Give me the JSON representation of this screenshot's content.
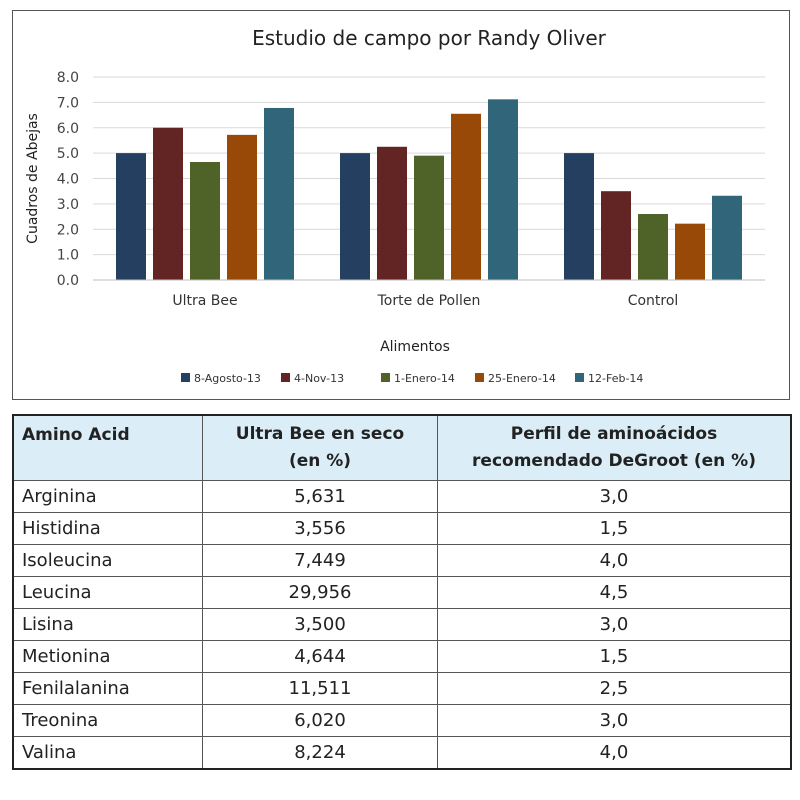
{
  "chart_data": {
    "type": "bar",
    "title": "Estudio de campo por Randy Oliver",
    "xlabel": "Alimentos",
    "ylabel": "Cuadros de Abejas",
    "ylim": [
      0,
      8
    ],
    "yticks": [
      "0.0",
      "1.0",
      "2.0",
      "3.0",
      "4.0",
      "5.0",
      "6.0",
      "7.0",
      "8.0"
    ],
    "grid": true,
    "legend_position": "bottom",
    "categories": [
      "Ultra Bee",
      "Torte de Pollen",
      "Control"
    ],
    "series": [
      {
        "name": "8-Agosto-13",
        "color": "#243f60",
        "values": [
          5.0,
          5.0,
          5.0
        ]
      },
      {
        "name": "4-Nov-13",
        "color": "#632523",
        "values": [
          6.0,
          5.25,
          3.5
        ]
      },
      {
        "name": "1-Enero-14",
        "color": "#4f6228",
        "values": [
          4.65,
          4.9,
          2.6
        ]
      },
      {
        "name": "25-Enero-14",
        "color": "#984807",
        "values": [
          5.72,
          6.55,
          2.22
        ]
      },
      {
        "name": "12-Feb-14",
        "color": "#31657a",
        "values": [
          6.78,
          7.12,
          3.32
        ]
      }
    ]
  },
  "table": {
    "headers": {
      "amino": "Amino Acid",
      "ultra_line1": "Ultra Bee en seco",
      "ultra_line2": "(en %)",
      "degroot_line1": "Perfil de aminoácidos",
      "degroot_line2": "recomendado DeGroot (en %)"
    },
    "rows": [
      [
        "Arginina",
        "5,631",
        "3,0"
      ],
      [
        "Histidina",
        "3,556",
        "1,5"
      ],
      [
        "Isoleucina",
        "7,449",
        "4,0"
      ],
      [
        "Leucina",
        "29,956",
        "4,5"
      ],
      [
        "Lisina",
        "3,500",
        "3,0"
      ],
      [
        "Metionina",
        "4,644",
        "1,5"
      ],
      [
        "Fenilalanina",
        "11,511",
        "2,5"
      ],
      [
        "Treonina",
        "6,020",
        "3,0"
      ],
      [
        "Valina",
        "8,224",
        "4,0"
      ]
    ]
  }
}
